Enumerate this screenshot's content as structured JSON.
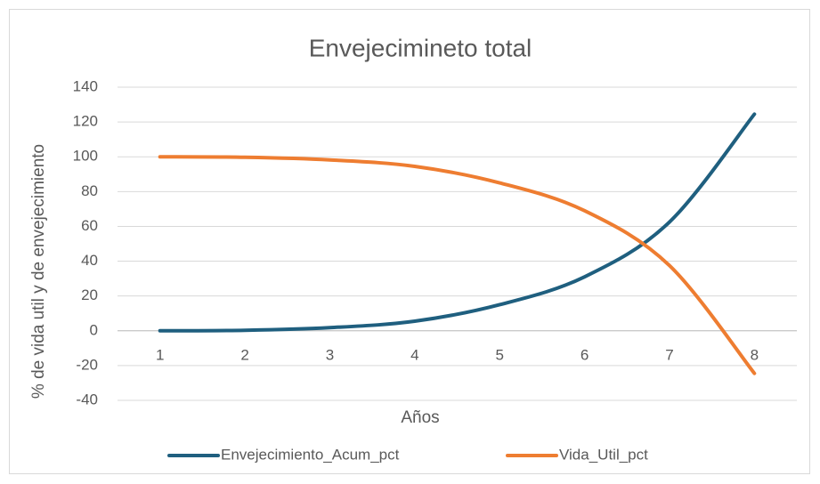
{
  "chart_data": {
    "type": "line",
    "title": "Envejecimineto total",
    "xlabel": "Años",
    "ylabel": "% de vida util y de envejecimiento",
    "categories": [
      "1",
      "2",
      "3",
      "4",
      "5",
      "6",
      "7",
      "8"
    ],
    "series": [
      {
        "name": "Envejecimiento_Acum_pct",
        "color": "#1f5f7f",
        "values": [
          0,
          0.3,
          1.8,
          5.5,
          15,
          31,
          62.5,
          124.5
        ]
      },
      {
        "name": "Vida_Util_pct",
        "color": "#ee7d31",
        "values": [
          100,
          99.7,
          98.2,
          94.5,
          85,
          69,
          37.5,
          -24.5
        ]
      }
    ],
    "ylim": [
      -40,
      140
    ],
    "yticks": [
      -40,
      -20,
      0,
      20,
      40,
      60,
      80,
      100,
      120,
      140
    ],
    "grid": true,
    "smooth": true,
    "legend": "bottom"
  }
}
